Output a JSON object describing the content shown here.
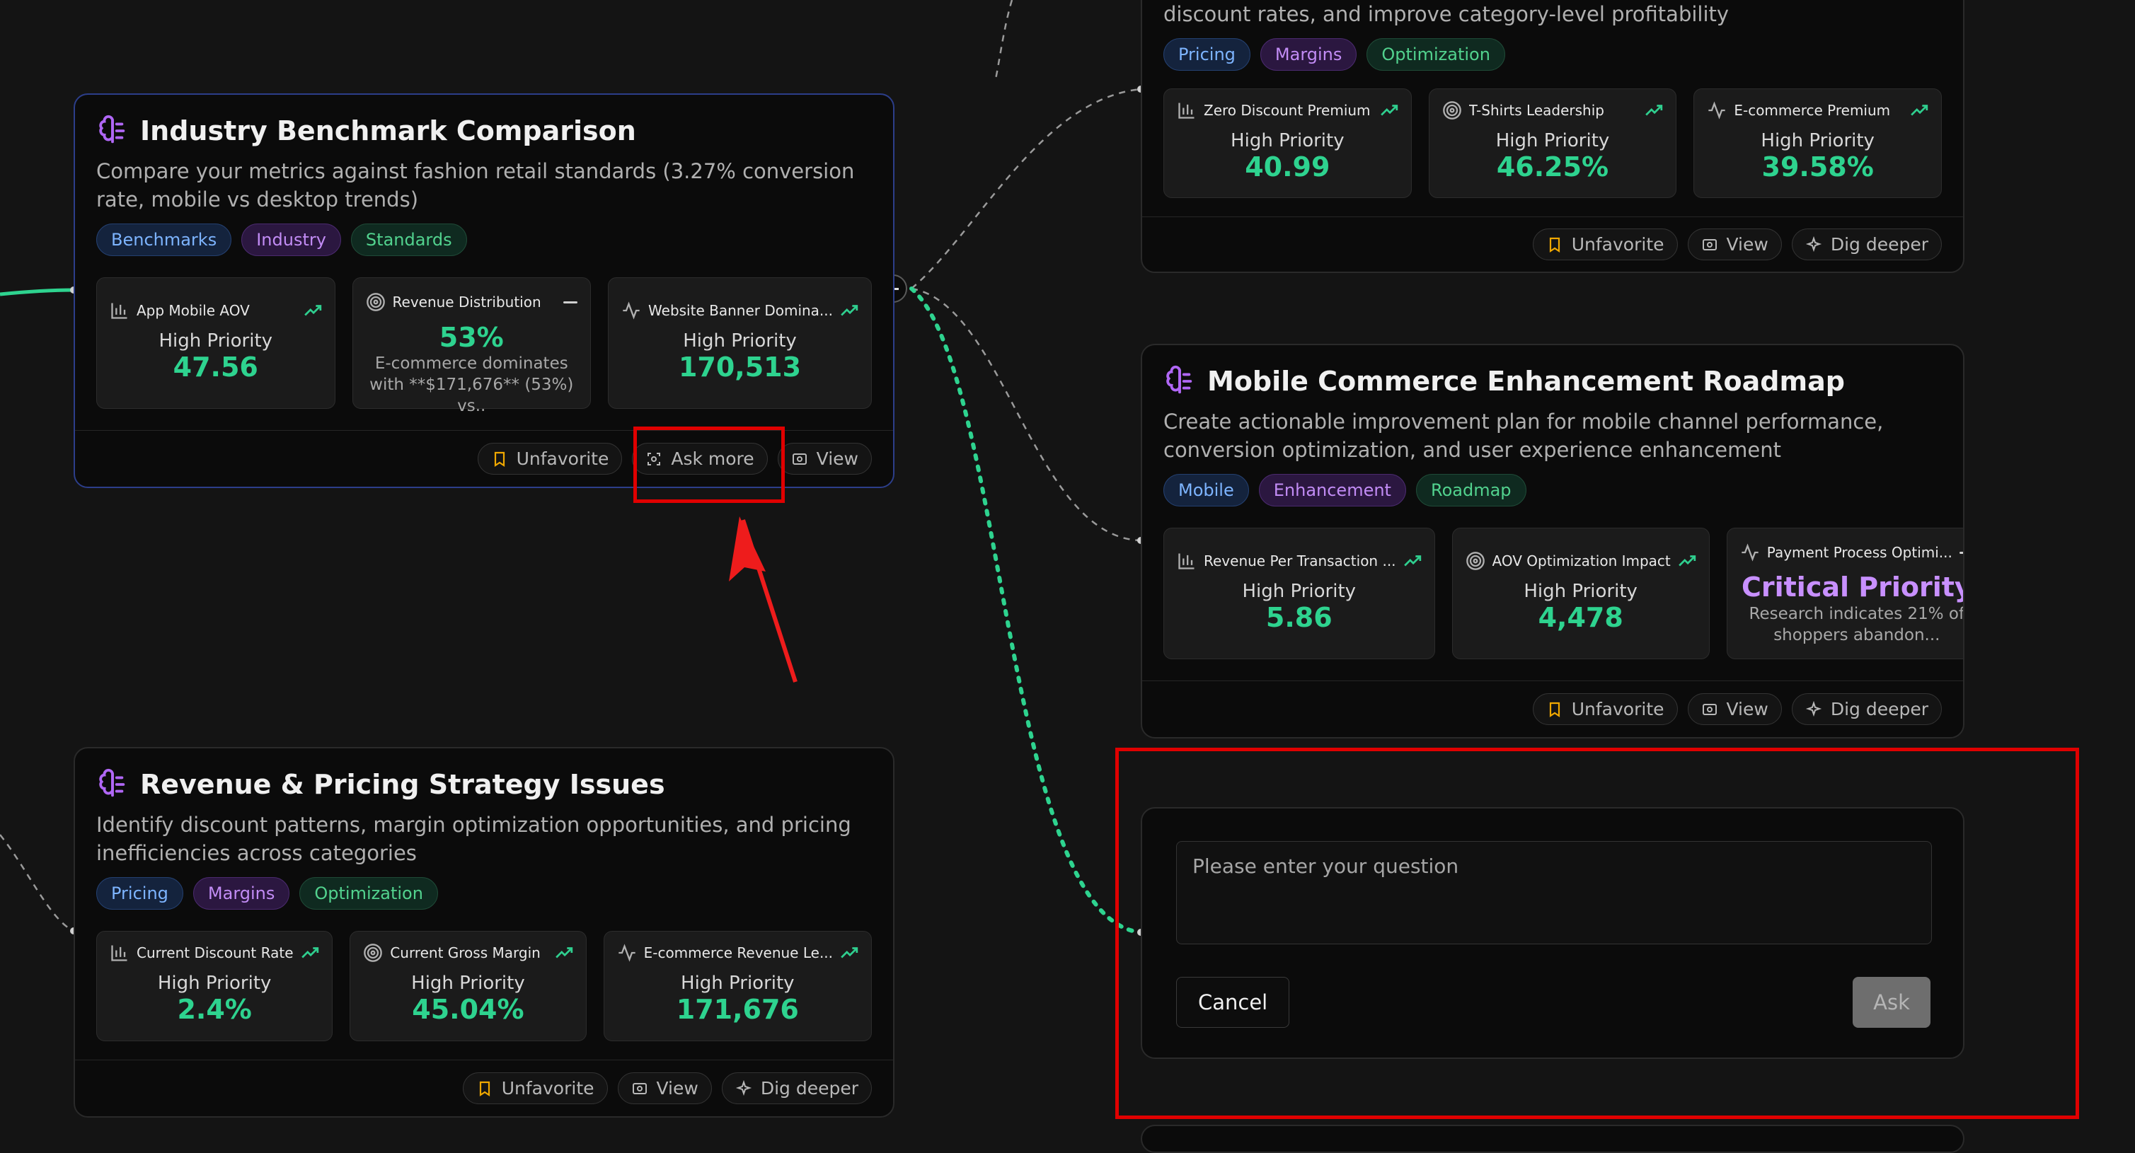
{
  "colors": {
    "background": "#141414",
    "accent_green": "#2ed38f",
    "highlight_red": "#e00000",
    "priority_purple": "#c890ff"
  },
  "cards": {
    "pricing_top": {
      "desc_line": "discount rates, and improve category-level profitability",
      "tags": [
        "Pricing",
        "Margins",
        "Optimization"
      ],
      "metrics": [
        {
          "icon": "bar-chart-icon",
          "label": "Zero Discount Premium",
          "priority": "High Priority",
          "value": "40.99",
          "trend": "trend-up-icon"
        },
        {
          "icon": "target-icon",
          "label": "T-Shirts Leadership",
          "priority": "High Priority",
          "value": "46.25%",
          "trend": "trend-up-icon"
        },
        {
          "icon": "activity-icon",
          "label": "E-commerce Premium",
          "priority": "High Priority",
          "value": "39.58%",
          "trend": "trend-up-icon"
        }
      ],
      "buttons": {
        "unfavorite": "Unfavorite",
        "view": "View",
        "dig": "Dig deeper"
      }
    },
    "benchmark": {
      "title": "Industry Benchmark Comparison",
      "desc": "Compare your metrics against fashion retail standards (3.27% conversion rate, mobile vs desktop trends)",
      "tags": [
        "Benchmarks",
        "Industry",
        "Standards"
      ],
      "metrics": [
        {
          "icon": "bar-chart-icon",
          "label": "App Mobile AOV",
          "priority": "High Priority",
          "value": "47.56"
        },
        {
          "icon": "target-icon",
          "label": "Revenue Distribution",
          "value": "53%",
          "sub": "E-commerce dominates with **$171,676** (53%) vs.."
        },
        {
          "icon": "activity-icon",
          "label": "Website Banner Domina...",
          "priority": "High Priority",
          "value": "170,513"
        }
      ],
      "buttons": {
        "unfavorite": "Unfavorite",
        "ask": "Ask more",
        "view": "View"
      }
    },
    "mobile": {
      "title": "Mobile Commerce Enhancement Roadmap",
      "desc": "Create actionable improvement plan for mobile channel performance, conversion optimization, and user experience enhancement",
      "tags": [
        "Mobile",
        "Enhancement",
        "Roadmap"
      ],
      "metrics": [
        {
          "icon": "bar-chart-icon",
          "label": "Revenue Per Transaction ...",
          "priority": "High Priority",
          "value": "5.86"
        },
        {
          "icon": "target-icon",
          "label": "AOV Optimization Impact",
          "priority": "High Priority",
          "value": "4,478"
        },
        {
          "icon": "activity-icon",
          "label": "Payment Process Optimi...",
          "priority": "Critical Priority",
          "sub": "Research indicates 21% of shoppers abandon..."
        }
      ],
      "buttons": {
        "unfavorite": "Unfavorite",
        "view": "View",
        "dig": "Dig deeper"
      }
    },
    "revenue": {
      "title": "Revenue & Pricing Strategy Issues",
      "desc": "Identify discount patterns, margin optimization opportunities, and pricing inefficiencies across categories",
      "tags": [
        "Pricing",
        "Margins",
        "Optimization"
      ],
      "metrics": [
        {
          "icon": "bar-chart-icon",
          "label": "Current Discount Rate",
          "priority": "High Priority",
          "value": "2.4%"
        },
        {
          "icon": "target-icon",
          "label": "Current Gross Margin",
          "priority": "High Priority",
          "value": "45.04%"
        },
        {
          "icon": "activity-icon",
          "label": "E-commerce Revenue Le...",
          "priority": "High Priority",
          "value": "171,676"
        }
      ],
      "buttons": {
        "unfavorite": "Unfavorite",
        "view": "View",
        "dig": "Dig deeper"
      }
    }
  },
  "ask_panel": {
    "placeholder": "Please enter your question",
    "cancel": "Cancel",
    "ask": "Ask"
  }
}
